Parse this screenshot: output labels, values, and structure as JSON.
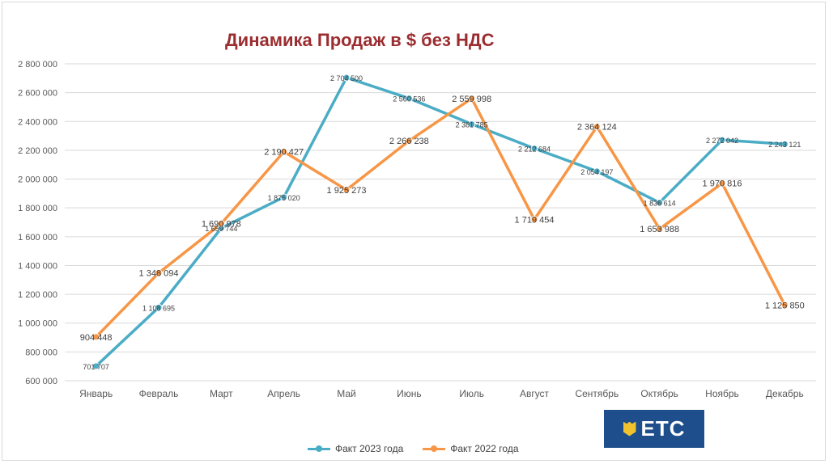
{
  "chart_data": {
    "type": "line",
    "title": "Динамика Продаж в $ без НДС",
    "categories": [
      "Январь",
      "Февраль",
      "Март",
      "Апрель",
      "Май",
      "Июнь",
      "Июль",
      "Август",
      "Сентябрь",
      "Октябрь",
      "Ноябрь",
      "Декабрь"
    ],
    "ylim": [
      600000,
      2800000
    ],
    "yticks": [
      600000,
      800000,
      1000000,
      1200000,
      1400000,
      1600000,
      1800000,
      2000000,
      2200000,
      2400000,
      2600000,
      2800000
    ],
    "ytick_labels": [
      "600 000",
      "800 000",
      "1 000 000",
      "1 200 000",
      "1 400 000",
      "1 600 000",
      "1 800 000",
      "2 000 000",
      "2 200 000",
      "2 400 000",
      "2 600 000",
      "2 800 000"
    ],
    "grid": true,
    "legend_position": "bottom",
    "series": [
      {
        "name": "Факт 2023 года",
        "color": "#4bacc6",
        "values": [
          701707,
          1108695,
          1659744,
          1875020,
          2704500,
          2560536,
          2381785,
          2212684,
          2054197,
          1836614,
          2272042,
          2243121
        ],
        "labels": [
          "701 707",
          "1 108 695",
          "1 659 744",
          "1 875 020",
          "2 704 500",
          "2 560 536",
          "2 381 785",
          "2 212 684",
          "2 054 197",
          "1 836 614",
          "2 272 042",
          "2 243 121"
        ]
      },
      {
        "name": "Факт 2022 года",
        "color": "#f79646",
        "values": [
          904448,
          1348094,
          1690978,
          2190427,
          1925273,
          2266238,
          2559998,
          1719454,
          2364124,
          1653988,
          1970816,
          1125850
        ],
        "labels": [
          "904 448",
          "1 348 094",
          "1 690 978",
          "2 190 427",
          "1 925 273",
          "2 266 238",
          "2 559 998",
          "1 719 454",
          "2 364 124",
          "1 653 988",
          "1 970 816",
          "1 125 850"
        ]
      }
    ]
  },
  "logo": {
    "text": "ETC"
  }
}
